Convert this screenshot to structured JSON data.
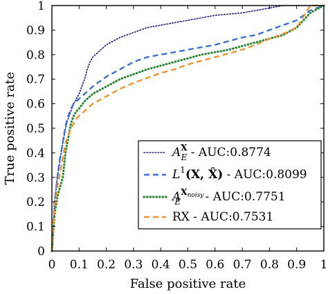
{
  "chart_data": {
    "type": "line",
    "xlabel": "False positive rate",
    "ylabel": "True positive rate",
    "xlim": [
      0,
      1
    ],
    "ylim": [
      0,
      1
    ],
    "x_ticks": [
      0,
      0.1,
      0.2,
      0.3,
      0.4,
      0.5,
      0.6,
      0.7,
      0.8,
      0.9,
      1
    ],
    "y_ticks": [
      0,
      0.1,
      0.2,
      0.3,
      0.4,
      0.5,
      0.6,
      0.7,
      0.8,
      0.9,
      1
    ],
    "x_tick_labels": [
      "0",
      "0.1",
      "0.2",
      "0.3",
      "0.4",
      "0.5",
      "0.6",
      "0.7",
      "0.8",
      "0.9",
      "1"
    ],
    "y_tick_labels": [
      "0",
      "0.1",
      "0.2",
      "0.3",
      "0.4",
      "0.5",
      "0.6",
      "0.7",
      "0.8",
      "0.9",
      "1"
    ],
    "grid": false,
    "legend_position": "bottom-right",
    "series": [
      {
        "auc_label": " - AUC:0.8774",
        "color": "#1a1a80",
        "dash": "dotted",
        "x": [
          0,
          0.005,
          0.01,
          0.02,
          0.03,
          0.04,
          0.05,
          0.06,
          0.07,
          0.08,
          0.09,
          0.1,
          0.11,
          0.12,
          0.13,
          0.14,
          0.15,
          0.17,
          0.2,
          0.25,
          0.3,
          0.35,
          0.4,
          0.45,
          0.5,
          0.55,
          0.6,
          0.65,
          0.7,
          0.75,
          0.8,
          0.85,
          0.9,
          0.95,
          1
        ],
        "y": [
          0,
          0.1,
          0.2,
          0.3,
          0.37,
          0.44,
          0.5,
          0.54,
          0.57,
          0.6,
          0.62,
          0.64,
          0.67,
          0.7,
          0.74,
          0.77,
          0.79,
          0.81,
          0.84,
          0.87,
          0.89,
          0.91,
          0.92,
          0.93,
          0.94,
          0.95,
          0.96,
          0.965,
          0.97,
          0.98,
          0.99,
          1.0,
          1.0,
          1.0,
          1.0
        ]
      },
      {
        "auc_label": " - AUC:0.8099",
        "color": "#3a6fd8",
        "dash": "dashed",
        "x": [
          0,
          0.005,
          0.01,
          0.02,
          0.03,
          0.04,
          0.05,
          0.06,
          0.07,
          0.08,
          0.09,
          0.1,
          0.12,
          0.15,
          0.2,
          0.25,
          0.3,
          0.35,
          0.4,
          0.45,
          0.5,
          0.55,
          0.6,
          0.65,
          0.7,
          0.75,
          0.8,
          0.85,
          0.9,
          0.95,
          1
        ],
        "y": [
          0,
          0.1,
          0.2,
          0.3,
          0.38,
          0.44,
          0.51,
          0.55,
          0.58,
          0.6,
          0.61,
          0.62,
          0.64,
          0.67,
          0.71,
          0.74,
          0.77,
          0.79,
          0.8,
          0.81,
          0.82,
          0.83,
          0.84,
          0.855,
          0.87,
          0.88,
          0.9,
          0.92,
          0.94,
          0.98,
          1.0
        ]
      },
      {
        "auc_label": " - AUC:0.7751",
        "color": "#2e8b3a",
        "dash": "dotted-thick",
        "x": [
          0,
          0.005,
          0.01,
          0.02,
          0.03,
          0.04,
          0.05,
          0.06,
          0.07,
          0.08,
          0.09,
          0.1,
          0.12,
          0.15,
          0.2,
          0.25,
          0.3,
          0.35,
          0.4,
          0.45,
          0.5,
          0.55,
          0.6,
          0.65,
          0.7,
          0.75,
          0.8,
          0.85,
          0.9,
          0.95,
          1
        ],
        "y": [
          0,
          0.08,
          0.15,
          0.22,
          0.26,
          0.3,
          0.4,
          0.46,
          0.52,
          0.55,
          0.57,
          0.58,
          0.61,
          0.64,
          0.67,
          0.7,
          0.72,
          0.74,
          0.755,
          0.77,
          0.785,
          0.8,
          0.81,
          0.82,
          0.835,
          0.85,
          0.865,
          0.88,
          0.91,
          0.97,
          1.0
        ]
      },
      {
        "auc_label": " - AUC:0.7531",
        "color": "#f0922b",
        "dash": "dashed",
        "x": [
          0,
          0.005,
          0.01,
          0.02,
          0.03,
          0.04,
          0.05,
          0.06,
          0.07,
          0.08,
          0.09,
          0.1,
          0.12,
          0.15,
          0.2,
          0.25,
          0.3,
          0.35,
          0.4,
          0.45,
          0.5,
          0.55,
          0.6,
          0.65,
          0.7,
          0.75,
          0.8,
          0.85,
          0.9,
          0.95,
          1
        ],
        "y": [
          0,
          0.1,
          0.18,
          0.26,
          0.32,
          0.38,
          0.44,
          0.47,
          0.5,
          0.52,
          0.54,
          0.55,
          0.57,
          0.6,
          0.63,
          0.66,
          0.685,
          0.705,
          0.725,
          0.74,
          0.76,
          0.775,
          0.79,
          0.805,
          0.82,
          0.84,
          0.865,
          0.885,
          0.91,
          1.0,
          1.0
        ]
      }
    ]
  },
  "legend": {
    "entries": [
      {
        "prefix": "A",
        "sup": "X",
        "sub": "E",
        "suffix": " - AUC:0.8774"
      },
      {
        "prefix": "L",
        "sup": "1",
        "args": "(X, X̂)",
        "suffix": " - AUC:0.8099"
      },
      {
        "prefix": "A",
        "sup": "X",
        "sup_sub": "noisy",
        "sub": "E",
        "suffix": " - AUC:0.7751"
      },
      {
        "prefix": "RX",
        "suffix": " - AUC:0.7531"
      }
    ]
  }
}
